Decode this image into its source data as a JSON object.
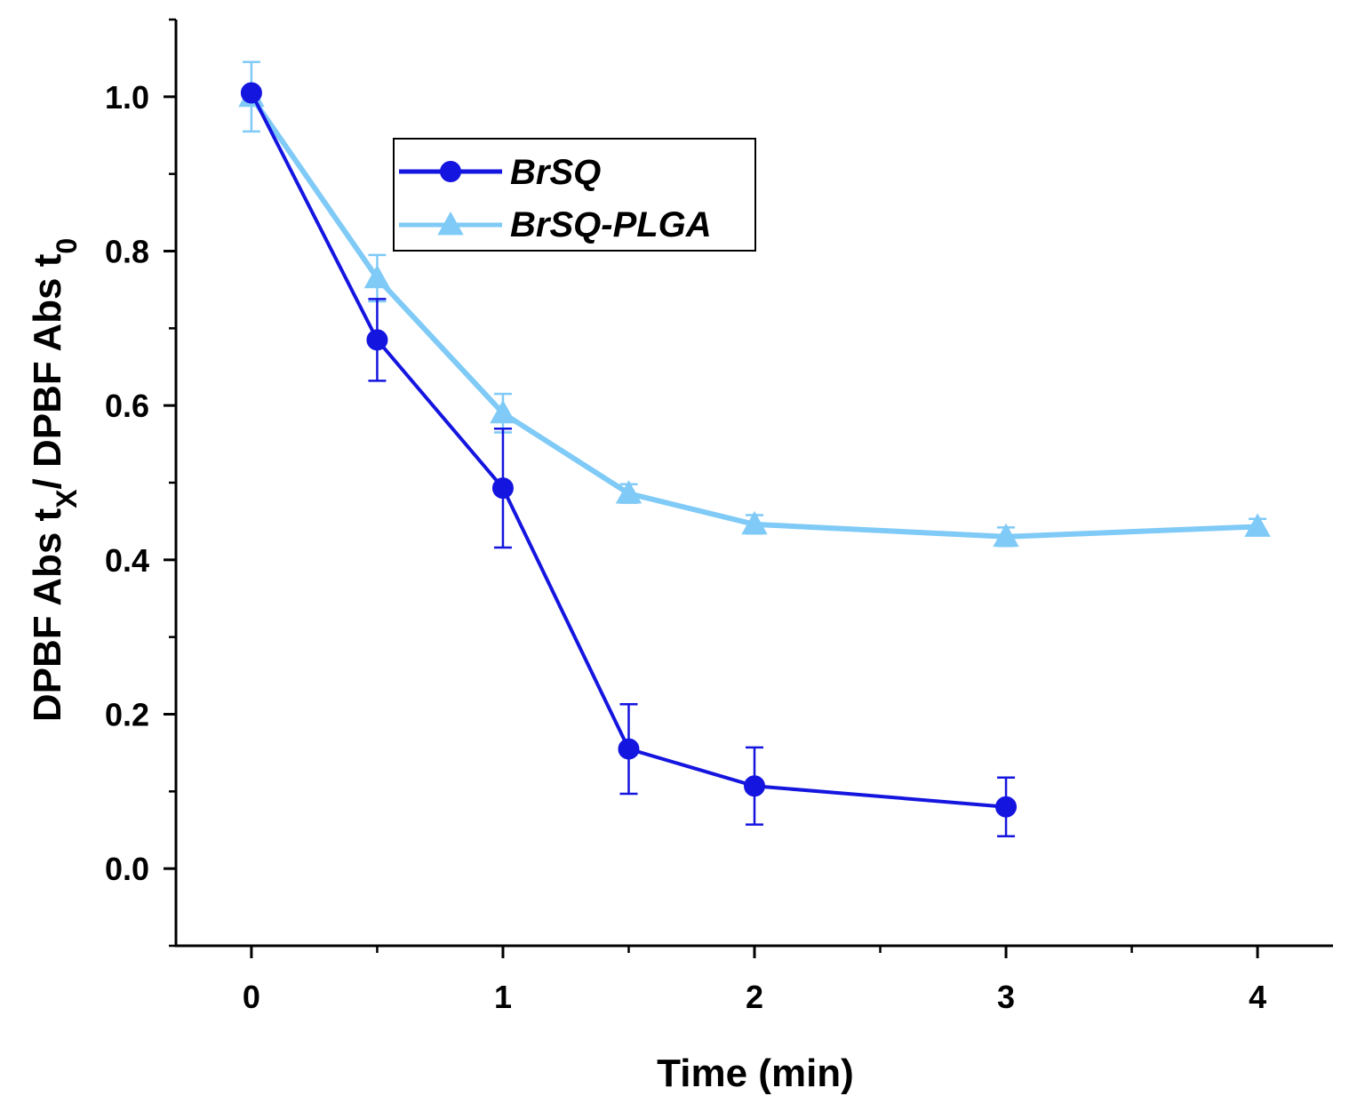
{
  "chart_data": {
    "type": "line",
    "title": "",
    "xlabel": "Time (min)",
    "ylabel_parts": [
      "DPBF Abs t",
      "X",
      "/ DPBF Abs t",
      "0"
    ],
    "xlim": [
      -0.3,
      4.3
    ],
    "ylim": [
      -0.1,
      1.1
    ],
    "x_ticks": [
      0,
      1,
      2,
      3,
      4
    ],
    "x_tick_labels": [
      "0",
      "1",
      "2",
      "3",
      "4"
    ],
    "x_minor_ticks": [
      0.5,
      1.5,
      2.5,
      3.5
    ],
    "y_ticks": [
      0.0,
      0.2,
      0.4,
      0.6,
      0.8,
      1.0
    ],
    "y_tick_labels": [
      "0.0",
      "0.2",
      "0.4",
      "0.6",
      "0.8",
      "1.0"
    ],
    "y_minor_ticks": [
      -0.1,
      0.1,
      0.3,
      0.5,
      0.7,
      0.9,
      1.1
    ],
    "grid": false,
    "legend_position": "top-center",
    "series": [
      {
        "name": "BrSQ",
        "color": "#1515e0",
        "marker": "circle",
        "x": [
          0,
          0.5,
          1,
          1.5,
          2,
          3
        ],
        "y": [
          1.005,
          0.685,
          0.493,
          0.155,
          0.107,
          0.08
        ],
        "err": [
          0.0,
          0.053,
          0.077,
          0.058,
          0.05,
          0.038
        ]
      },
      {
        "name": "BrSQ-PLGA",
        "color": "#7fcaf6",
        "marker": "triangle",
        "x": [
          0,
          0.5,
          1,
          1.5,
          2,
          3,
          4
        ],
        "y": [
          1.0,
          0.765,
          0.59,
          0.486,
          0.446,
          0.43,
          0.443
        ],
        "err": [
          0.045,
          0.03,
          0.025,
          0.012,
          0.012,
          0.012,
          0.01
        ]
      }
    ]
  }
}
